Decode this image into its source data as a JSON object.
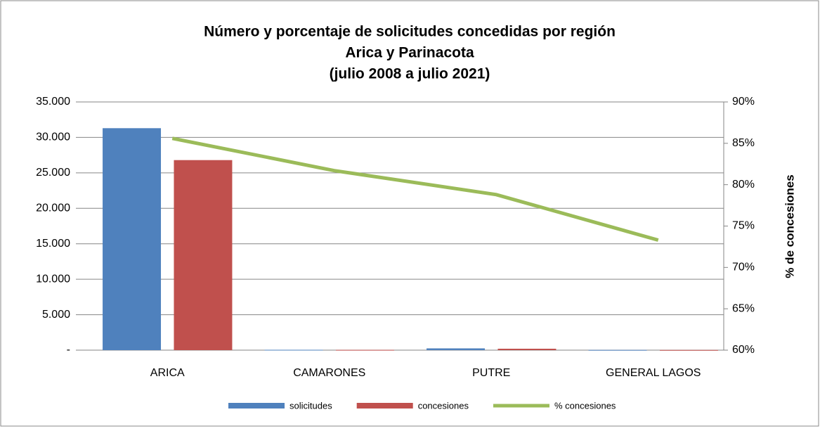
{
  "chart_data": {
    "type": "bar_line",
    "title": [
      "Número y porcentaje de solicitudes concedidas por región",
      "Arica y Parinacota",
      "(julio 2008 a julio 2021)"
    ],
    "categories": [
      "ARICA",
      "CAMARONES",
      "PUTRE",
      "GENERAL LAGOS"
    ],
    "series": [
      {
        "name": "solicitudes",
        "color": "#4f81bd",
        "type": "bar",
        "values": [
          31300,
          50,
          250,
          30
        ]
      },
      {
        "name": "concesiones",
        "color": "#c0504d",
        "type": "bar",
        "values": [
          26800,
          40,
          200,
          22
        ]
      },
      {
        "name": "% concesiones",
        "color": "#9bbb59",
        "type": "line",
        "axis": "y2",
        "values": [
          85.6,
          81.7,
          78.8,
          73.3
        ]
      }
    ],
    "ylim": [
      0,
      35000
    ],
    "yticks": [
      {
        "value": 0,
        "label": "-"
      },
      {
        "value": 5000,
        "label": "5.000"
      },
      {
        "value": 10000,
        "label": "10.000"
      },
      {
        "value": 15000,
        "label": "15.000"
      },
      {
        "value": 20000,
        "label": "20.000"
      },
      {
        "value": 25000,
        "label": "25.000"
      },
      {
        "value": 30000,
        "label": "30.000"
      },
      {
        "value": 35000,
        "label": "35.000"
      }
    ],
    "y2lim": [
      60,
      90
    ],
    "y2ticks": [
      {
        "value": 60,
        "label": "60%"
      },
      {
        "value": 65,
        "label": "65%"
      },
      {
        "value": 70,
        "label": "70%"
      },
      {
        "value": 75,
        "label": "75%"
      },
      {
        "value": 80,
        "label": "80%"
      },
      {
        "value": 85,
        "label": "85%"
      },
      {
        "value": 90,
        "label": "90%"
      }
    ],
    "y2label": "% de concesiones",
    "grid": true,
    "legend": "bottom"
  }
}
